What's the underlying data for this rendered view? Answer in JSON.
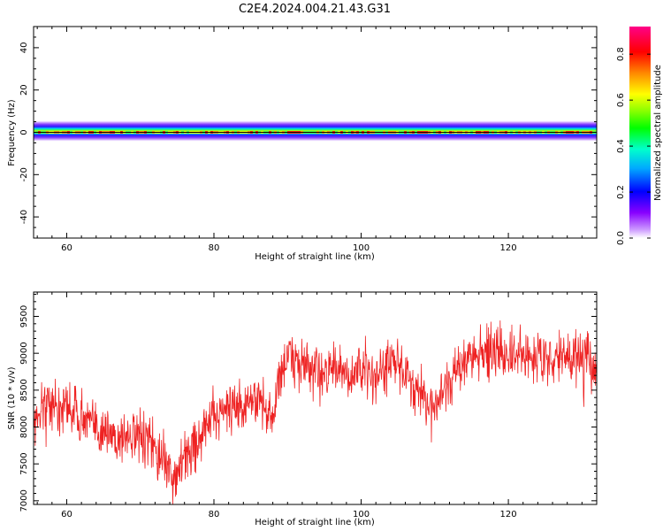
{
  "title": "C2E4.2024.004.21.43.G31",
  "chart_data": [
    {
      "type": "heatmap",
      "xlabel": "Height of straight line (km)",
      "ylabel": "Frequency (Hz)",
      "xlim": [
        55.5,
        132
      ],
      "ylim": [
        -50,
        50
      ],
      "xticks": [
        "60",
        "80",
        "100",
        "120"
      ],
      "yticks": [
        "40",
        "20",
        "0",
        "-20",
        "-40"
      ],
      "band": {
        "center_hz": 0,
        "core_halfwidth_hz": 1,
        "outer_halfwidth_hz": 3
      }
    },
    {
      "type": "line",
      "xlabel": "Height of straight line (km)",
      "ylabel": "SNR (10 * v/v)",
      "xlim": [
        55.5,
        132
      ],
      "ylim": [
        6950,
        9830
      ],
      "xticks": [
        "60",
        "80",
        "100",
        "120"
      ],
      "yticks": [
        "7000",
        "7500",
        "8000",
        "8500",
        "9000",
        "9500"
      ],
      "color": "#ee2222",
      "series": [
        {
          "x": [
            55.5,
            57,
            59,
            61,
            63,
            65,
            67,
            69,
            71,
            73,
            74.5,
            76,
            78,
            80,
            82,
            84,
            86,
            88,
            89,
            90,
            92,
            94,
            96,
            98,
            100,
            102,
            104,
            106,
            108,
            110,
            111,
            113,
            114,
            116,
            118,
            120,
            122,
            124,
            126,
            128,
            130,
            132
          ],
          "values": [
            8050,
            8350,
            8300,
            8250,
            8050,
            7950,
            7850,
            7900,
            7800,
            7600,
            7300,
            7600,
            7850,
            8150,
            8300,
            8250,
            8400,
            8100,
            8750,
            8950,
            8850,
            8750,
            8800,
            8650,
            8800,
            8700,
            8900,
            8700,
            8500,
            8250,
            8550,
            8750,
            8900,
            9000,
            9050,
            8950,
            8950,
            9000,
            8900,
            8950,
            8950,
            8800
          ],
          "noise": 260
        }
      ]
    }
  ],
  "colorbar": {
    "label": "Normalized spectral amplitude",
    "ticks": [
      "0.0",
      "0.2",
      "0.4",
      "0.6",
      "0.8"
    ],
    "range": [
      0,
      0.92
    ]
  }
}
